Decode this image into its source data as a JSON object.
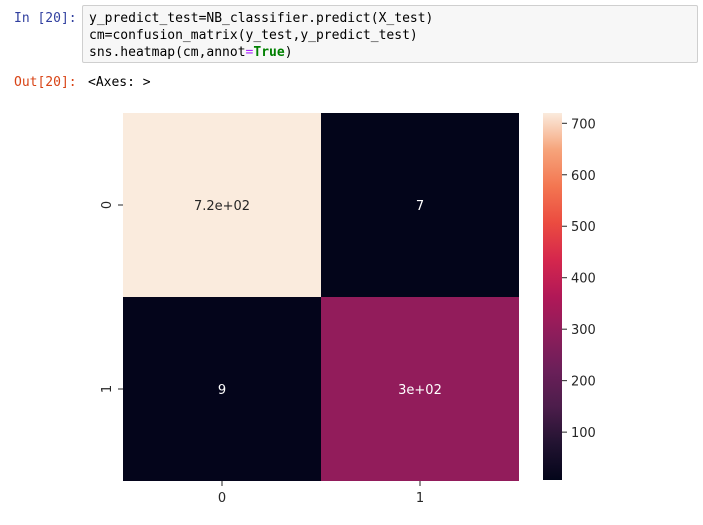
{
  "input_prompt": "In [20]:",
  "output_prompt": "Out[20]:",
  "code_lines": [
    "y_predict_test=NB_classifier.predict(X_test)",
    "cm=confusion_matrix(y_test,y_predict_test)",
    "sns.heatmap(cm,annot=True)"
  ],
  "code_line3_pre": "sns.heatmap(cm,annot",
  "code_line3_eq": "=",
  "code_line3_kw": "True",
  "code_line3_post": ")",
  "output_text": "<Axes: >",
  "chart_data": {
    "type": "heatmap",
    "rows": [
      "0",
      "1"
    ],
    "cols": [
      "0",
      "1"
    ],
    "values": [
      [
        720,
        7
      ],
      [
        9,
        300
      ]
    ],
    "annotations": [
      [
        "7.2e+02",
        "7"
      ],
      [
        "9",
        "3e+02"
      ]
    ],
    "colormap": "rocket",
    "colorbar": {
      "ticks": [
        100,
        200,
        300,
        400,
        500,
        600,
        700
      ],
      "tick_labels": [
        "100",
        "200",
        "300",
        "400",
        "500",
        "600",
        "700"
      ],
      "range": [
        7,
        720
      ]
    }
  }
}
